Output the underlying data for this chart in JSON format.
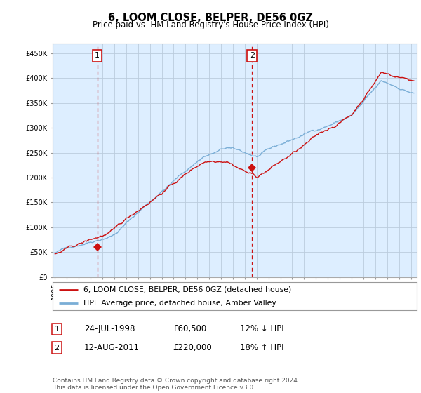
{
  "title": "6, LOOM CLOSE, BELPER, DE56 0GZ",
  "subtitle": "Price paid vs. HM Land Registry's House Price Index (HPI)",
  "ylabel_ticks": [
    "£0",
    "£50K",
    "£100K",
    "£150K",
    "£200K",
    "£250K",
    "£300K",
    "£350K",
    "£400K",
    "£450K"
  ],
  "ytick_values": [
    0,
    50000,
    100000,
    150000,
    200000,
    250000,
    300000,
    350000,
    400000,
    450000
  ],
  "ylim": [
    0,
    470000
  ],
  "xlim_start": 1994.8,
  "xlim_end": 2025.5,
  "sale1_date": 1998.56,
  "sale1_price": 60500,
  "sale1_label": "1",
  "sale2_date": 2011.62,
  "sale2_price": 220000,
  "sale2_label": "2",
  "hpi_color": "#7aaed6",
  "price_color": "#cc1111",
  "vline_color": "#cc1111",
  "chart_bg": "#ddeeff",
  "legend_label_price": "6, LOOM CLOSE, BELPER, DE56 0GZ (detached house)",
  "legend_label_hpi": "HPI: Average price, detached house, Amber Valley",
  "table_row1": [
    "1",
    "24-JUL-1998",
    "£60,500",
    "12% ↓ HPI"
  ],
  "table_row2": [
    "2",
    "12-AUG-2011",
    "£220,000",
    "18% ↑ HPI"
  ],
  "footnote": "Contains HM Land Registry data © Crown copyright and database right 2024.\nThis data is licensed under the Open Government Licence v3.0.",
  "background_color": "#ffffff",
  "grid_color": "#bbccdd"
}
